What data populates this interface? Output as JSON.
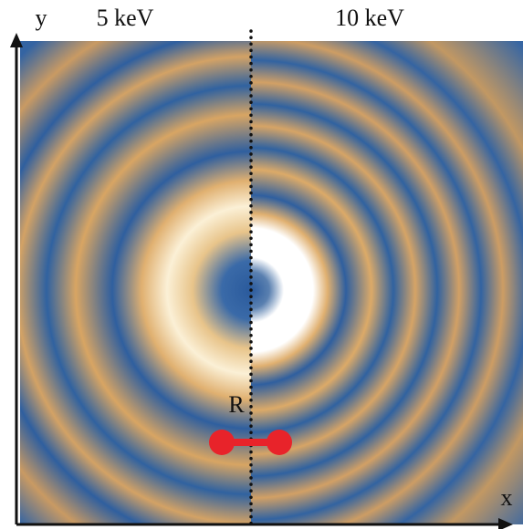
{
  "axes": {
    "x": "x",
    "y": "y"
  },
  "panels": {
    "left": "5 keV",
    "right": "10 keV"
  },
  "marker": "R"
}
